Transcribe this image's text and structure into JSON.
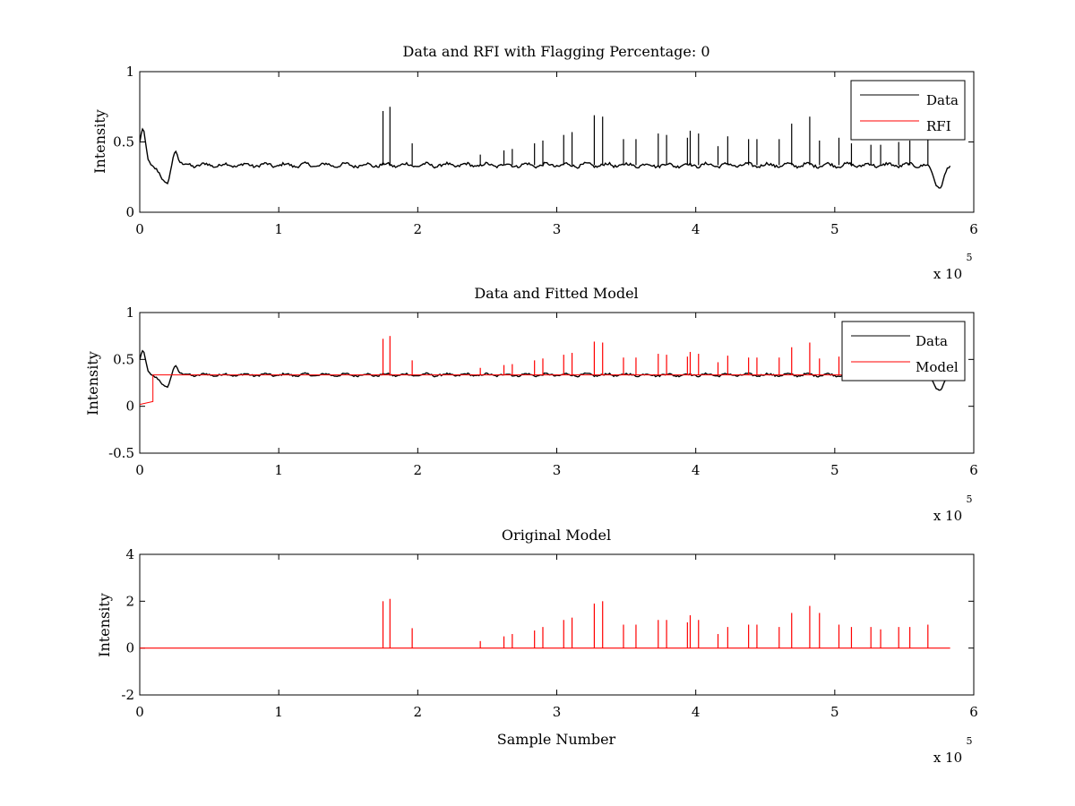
{
  "colors": {
    "data": "#000000",
    "rfi": "#ff0000",
    "model": "#ff0000",
    "axes": "#000000",
    "background": "#ffffff"
  },
  "chart_data": [
    {
      "type": "line",
      "title": "Data and RFI with Flagging Percentage: 0",
      "xlabel": "",
      "ylabel": "Intensity",
      "xlim": [
        0,
        600000
      ],
      "ylim": [
        0,
        1
      ],
      "xticks": [
        0,
        1,
        2,
        3,
        4,
        5,
        6
      ],
      "yticks": [
        0,
        0.5,
        1
      ],
      "xtick_labels": [
        "0",
        "1",
        "2",
        "3",
        "4",
        "5",
        "6"
      ],
      "ytick_labels": [
        "0",
        "0.5",
        "1"
      ],
      "x_multiplier": "x 10",
      "x_exponent": "5",
      "legend": {
        "position": "top-right",
        "entries": [
          "Data",
          "RFI"
        ]
      },
      "series": [
        {
          "name": "Data",
          "color": "#000000",
          "baseline": 0.335,
          "x_range": [
            0,
            583000
          ],
          "features": [
            {
              "x": 2000,
              "y": 0.58,
              "w": 3000
            },
            {
              "x": 19000,
              "y": 0.19,
              "w": 5000
            },
            {
              "x": 25000,
              "y": 0.47,
              "w": 3000
            },
            {
              "x": 575000,
              "y": 0.18,
              "w": 5000
            }
          ],
          "spikes": [
            {
              "x": 175000,
              "y": 0.72
            },
            {
              "x": 180000,
              "y": 0.75
            },
            {
              "x": 196000,
              "y": 0.49
            },
            {
              "x": 245000,
              "y": 0.41
            },
            {
              "x": 262000,
              "y": 0.44
            },
            {
              "x": 268000,
              "y": 0.45
            },
            {
              "x": 284000,
              "y": 0.49
            },
            {
              "x": 290000,
              "y": 0.51
            },
            {
              "x": 305000,
              "y": 0.55
            },
            {
              "x": 311000,
              "y": 0.57
            },
            {
              "x": 327000,
              "y": 0.69
            },
            {
              "x": 333000,
              "y": 0.68
            },
            {
              "x": 348000,
              "y": 0.52
            },
            {
              "x": 357000,
              "y": 0.52
            },
            {
              "x": 373000,
              "y": 0.56
            },
            {
              "x": 379000,
              "y": 0.55
            },
            {
              "x": 394000,
              "y": 0.53
            },
            {
              "x": 396000,
              "y": 0.58
            },
            {
              "x": 402000,
              "y": 0.56
            },
            {
              "x": 416000,
              "y": 0.47
            },
            {
              "x": 423000,
              "y": 0.54
            },
            {
              "x": 438000,
              "y": 0.52
            },
            {
              "x": 444000,
              "y": 0.52
            },
            {
              "x": 460000,
              "y": 0.52
            },
            {
              "x": 469000,
              "y": 0.63
            },
            {
              "x": 482000,
              "y": 0.68
            },
            {
              "x": 489000,
              "y": 0.51
            },
            {
              "x": 503000,
              "y": 0.53
            },
            {
              "x": 512000,
              "y": 0.49
            },
            {
              "x": 526000,
              "y": 0.48
            },
            {
              "x": 533000,
              "y": 0.48
            },
            {
              "x": 546000,
              "y": 0.5
            },
            {
              "x": 554000,
              "y": 0.51
            },
            {
              "x": 567000,
              "y": 0.52
            }
          ]
        },
        {
          "name": "RFI",
          "color": "#ff0000"
        }
      ]
    },
    {
      "type": "line",
      "title": "Data and Fitted Model",
      "xlabel": "",
      "ylabel": "Intensity",
      "xlim": [
        0,
        600000
      ],
      "ylim": [
        -0.5,
        1
      ],
      "xticks": [
        0,
        1,
        2,
        3,
        4,
        5,
        6
      ],
      "yticks": [
        -0.5,
        0,
        0.5,
        1
      ],
      "xtick_labels": [
        "0",
        "1",
        "2",
        "3",
        "4",
        "5",
        "6"
      ],
      "ytick_labels": [
        "-0.5",
        "0",
        "0.5",
        "1"
      ],
      "x_multiplier": "x 10",
      "x_exponent": "5",
      "legend": {
        "position": "top-right",
        "entries": [
          "Data",
          "Model"
        ]
      },
      "series": [
        {
          "name": "Data",
          "color": "#000000",
          "same_as": "panel1.Data"
        },
        {
          "name": "Model",
          "color": "#ff0000",
          "baseline": 0.335,
          "initial_segment": {
            "x_start": 0,
            "x_end": 9500,
            "y": 0.02
          },
          "spikes": "same positions as Data spikes"
        }
      ]
    },
    {
      "type": "line",
      "title": "Original Model",
      "xlabel": "Sample Number",
      "ylabel": "Intensity",
      "xlim": [
        0,
        600000
      ],
      "ylim": [
        -2,
        4
      ],
      "xticks": [
        0,
        1,
        2,
        3,
        4,
        5,
        6
      ],
      "yticks": [
        -2,
        0,
        2,
        4
      ],
      "xtick_labels": [
        "0",
        "1",
        "2",
        "3",
        "4",
        "5",
        "6"
      ],
      "ytick_labels": [
        "-2",
        "0",
        "2",
        "4"
      ],
      "x_multiplier": "x 10",
      "x_exponent": "5",
      "series": [
        {
          "name": "Model",
          "color": "#ff0000",
          "baseline": 0.0,
          "x_range": [
            0,
            583000
          ],
          "spikes": [
            {
              "x": 175000,
              "y": 2.0
            },
            {
              "x": 180000,
              "y": 2.1
            },
            {
              "x": 196000,
              "y": 0.85
            },
            {
              "x": 245000,
              "y": 0.3
            },
            {
              "x": 262000,
              "y": 0.5
            },
            {
              "x": 268000,
              "y": 0.6
            },
            {
              "x": 284000,
              "y": 0.75
            },
            {
              "x": 290000,
              "y": 0.9
            },
            {
              "x": 305000,
              "y": 1.2
            },
            {
              "x": 311000,
              "y": 1.3
            },
            {
              "x": 327000,
              "y": 1.9
            },
            {
              "x": 333000,
              "y": 2.0
            },
            {
              "x": 348000,
              "y": 1.0
            },
            {
              "x": 357000,
              "y": 1.0
            },
            {
              "x": 373000,
              "y": 1.2
            },
            {
              "x": 379000,
              "y": 1.2
            },
            {
              "x": 394000,
              "y": 1.1
            },
            {
              "x": 396000,
              "y": 1.4
            },
            {
              "x": 402000,
              "y": 1.2
            },
            {
              "x": 416000,
              "y": 0.6
            },
            {
              "x": 423000,
              "y": 0.9
            },
            {
              "x": 438000,
              "y": 1.0
            },
            {
              "x": 444000,
              "y": 1.0
            },
            {
              "x": 460000,
              "y": 0.9
            },
            {
              "x": 469000,
              "y": 1.5
            },
            {
              "x": 482000,
              "y": 1.8
            },
            {
              "x": 489000,
              "y": 1.5
            },
            {
              "x": 503000,
              "y": 1.0
            },
            {
              "x": 512000,
              "y": 0.9
            },
            {
              "x": 526000,
              "y": 0.9
            },
            {
              "x": 533000,
              "y": 0.8
            },
            {
              "x": 546000,
              "y": 0.9
            },
            {
              "x": 554000,
              "y": 0.9
            },
            {
              "x": 567000,
              "y": 1.0
            }
          ]
        }
      ]
    }
  ]
}
